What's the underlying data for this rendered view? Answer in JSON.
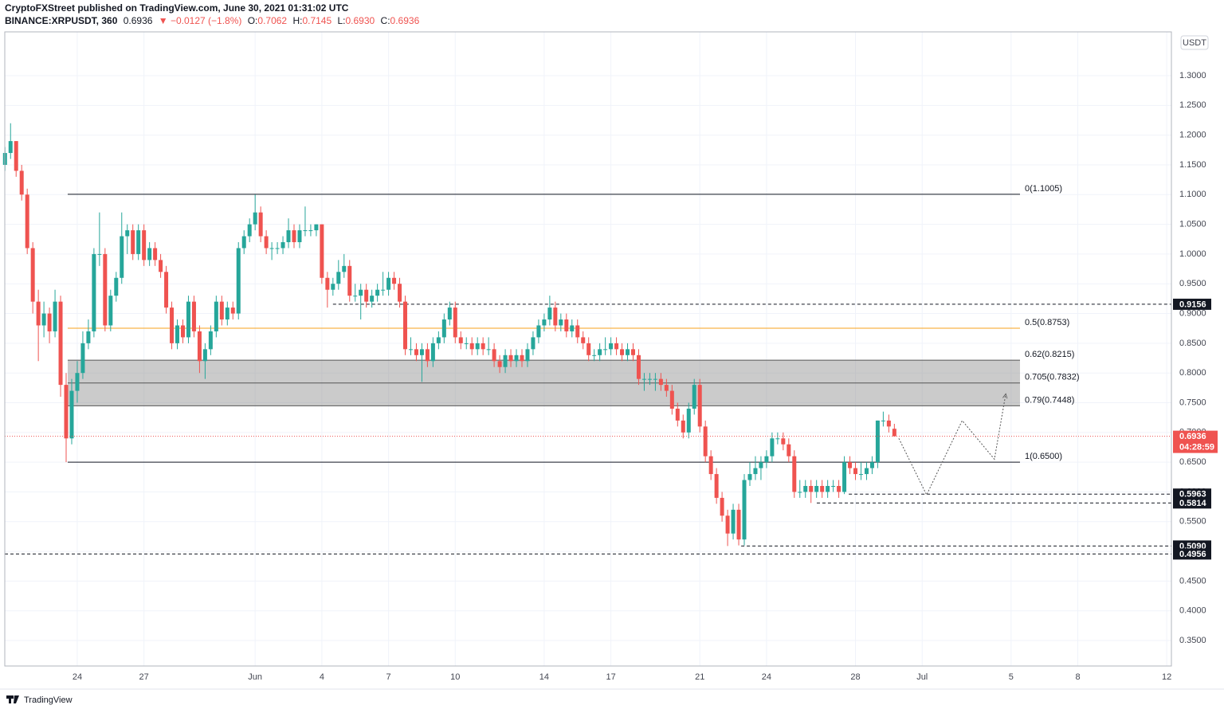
{
  "header": {
    "published": "CryptoFXStreet published on TradingView.com, June 30, 2021 01:31:02 UTC",
    "symbol": "BINANCE:XRPUSDT, 360",
    "price": "0.6936",
    "change": "▼ −0.0127 (−1.8%)",
    "ohlc": [
      {
        "k": "O:",
        "v": "0.7062"
      },
      {
        "k": "H:",
        "v": "0.7145"
      },
      {
        "k": "L:",
        "v": "0.6930"
      },
      {
        "k": "C:",
        "v": "0.6936"
      }
    ]
  },
  "footer": "TradingView",
  "chart_data": {
    "type": "candlestick",
    "axis_unit": "USDT",
    "colors": {
      "up": "#26a69a",
      "down": "#ef5350"
    },
    "xlim": [
      -3.26,
      49.21
    ],
    "ylim": [
      0.3072,
      1.3737
    ],
    "grid": true,
    "xticks": [
      {
        "value": 0,
        "label": "24"
      },
      {
        "value": 3,
        "label": "27"
      },
      {
        "value": 8,
        "label": "Jun"
      },
      {
        "value": 11,
        "label": "4"
      },
      {
        "value": 14,
        "label": "7"
      },
      {
        "value": 17,
        "label": "10"
      },
      {
        "value": 21,
        "label": "14"
      },
      {
        "value": 24,
        "label": "17"
      },
      {
        "value": 28,
        "label": "21"
      },
      {
        "value": 31,
        "label": "24"
      },
      {
        "value": 35,
        "label": "28"
      },
      {
        "value": 38,
        "label": "Jul"
      },
      {
        "value": 42,
        "label": "5"
      },
      {
        "value": 45,
        "label": "8"
      },
      {
        "value": 49,
        "label": "12"
      }
    ],
    "yticks": [
      {
        "value": 0.35,
        "label": "0.3500"
      },
      {
        "value": 0.4,
        "label": "0.4000"
      },
      {
        "value": 0.45,
        "label": "0.4500"
      },
      {
        "value": 0.5,
        "label": "0.5000"
      },
      {
        "value": 0.55,
        "label": "0.5500"
      },
      {
        "value": 0.6,
        "label": "0.6000"
      },
      {
        "value": 0.65,
        "label": "0.6500"
      },
      {
        "value": 0.7,
        "label": "0.7000"
      },
      {
        "value": 0.75,
        "label": "0.7500"
      },
      {
        "value": 0.8,
        "label": "0.8000"
      },
      {
        "value": 0.85,
        "label": "0.8500"
      },
      {
        "value": 0.9,
        "label": "0.9000"
      },
      {
        "value": 0.95,
        "label": "0.9500"
      },
      {
        "value": 1.0,
        "label": "1.0000"
      },
      {
        "value": 1.05,
        "label": "1.0500"
      },
      {
        "value": 1.1,
        "label": "1.1000"
      },
      {
        "value": 1.15,
        "label": "1.1500"
      },
      {
        "value": 1.2,
        "label": "1.2000"
      },
      {
        "value": 1.25,
        "label": "1.2500"
      },
      {
        "value": 1.3,
        "label": "1.3000"
      }
    ],
    "x": [
      -3.25,
      -3,
      -2.75,
      -2.5,
      -2.25,
      -2,
      -1.75,
      -1.5,
      -1.25,
      -1,
      -0.75,
      -0.5,
      -0.25,
      0,
      0.25,
      0.5,
      0.75,
      1,
      1.25,
      1.5,
      1.75,
      2,
      2.25,
      2.5,
      2.75,
      3,
      3.25,
      3.5,
      3.75,
      4,
      4.25,
      4.5,
      4.75,
      5,
      5.25,
      5.5,
      5.75,
      6,
      6.25,
      6.5,
      6.75,
      7,
      7.25,
      7.5,
      7.75,
      8,
      8.25,
      8.5,
      8.75,
      9,
      9.25,
      9.5,
      9.75,
      10,
      10.25,
      10.5,
      10.75,
      11,
      11.25,
      11.5,
      11.75,
      12,
      12.25,
      12.5,
      12.75,
      13,
      13.25,
      13.5,
      13.75,
      14,
      14.25,
      14.5,
      14.75,
      15,
      15.25,
      15.5,
      15.75,
      16,
      16.25,
      16.5,
      16.75,
      17,
      17.25,
      17.5,
      17.75,
      18,
      18.25,
      18.5,
      18.75,
      19,
      19.25,
      19.5,
      19.75,
      20,
      20.25,
      20.5,
      20.75,
      21,
      21.25,
      21.5,
      21.75,
      22,
      22.25,
      22.5,
      22.75,
      23,
      23.25,
      23.5,
      23.75,
      24,
      24.25,
      24.5,
      24.75,
      25,
      25.25,
      25.5,
      25.75,
      26,
      26.25,
      26.5,
      26.75,
      27,
      27.25,
      27.5,
      27.75,
      28,
      28.25,
      28.5,
      28.75,
      29,
      29.25,
      29.5,
      29.75,
      30,
      30.25,
      30.5,
      30.75,
      31,
      31.25,
      31.5,
      31.75,
      32,
      32.25,
      32.5,
      32.75,
      33,
      33.25,
      33.5,
      33.75,
      34,
      34.25,
      34.5,
      34.75,
      35,
      35.25,
      35.5,
      35.75,
      36,
      36.25,
      36.5,
      36.75
    ],
    "candles": [
      [
        1.15,
        1.18,
        1.14,
        1.17
      ],
      [
        1.17,
        1.22,
        1.16,
        1.19
      ],
      [
        1.19,
        1.19,
        1.13,
        1.14
      ],
      [
        1.14,
        1.15,
        1.09,
        1.1
      ],
      [
        1.1,
        1.11,
        1.0,
        1.01
      ],
      [
        1.01,
        1.02,
        0.9,
        0.92
      ],
      [
        0.92,
        0.94,
        0.82,
        0.88
      ],
      [
        0.88,
        0.92,
        0.86,
        0.9
      ],
      [
        0.9,
        0.91,
        0.85,
        0.87
      ],
      [
        0.87,
        0.94,
        0.86,
        0.92
      ],
      [
        0.92,
        0.93,
        0.76,
        0.78
      ],
      [
        0.78,
        0.8,
        0.65,
        0.69
      ],
      [
        0.69,
        0.79,
        0.68,
        0.77
      ],
      [
        0.77,
        0.82,
        0.75,
        0.8
      ],
      [
        0.8,
        0.87,
        0.79,
        0.85
      ],
      [
        0.85,
        0.89,
        0.84,
        0.87
      ],
      [
        0.87,
        1.01,
        0.86,
        1.0
      ],
      [
        1.0,
        1.07,
        0.98,
        1.0
      ],
      [
        1.0,
        1.01,
        0.87,
        0.88
      ],
      [
        0.88,
        0.94,
        0.87,
        0.93
      ],
      [
        0.93,
        0.97,
        0.92,
        0.96
      ],
      [
        0.96,
        1.07,
        0.95,
        1.03
      ],
      [
        1.03,
        1.05,
        1.0,
        1.04
      ],
      [
        1.04,
        1.05,
        0.99,
        1.0
      ],
      [
        1.0,
        1.05,
        0.99,
        1.04
      ],
      [
        1.04,
        1.05,
        0.98,
        0.99
      ],
      [
        0.99,
        1.02,
        0.98,
        1.01
      ],
      [
        1.01,
        1.02,
        0.98,
        0.99
      ],
      [
        0.99,
        1.0,
        0.96,
        0.97
      ],
      [
        0.97,
        0.98,
        0.9,
        0.91
      ],
      [
        0.91,
        0.92,
        0.84,
        0.85
      ],
      [
        0.85,
        0.89,
        0.84,
        0.88
      ],
      [
        0.88,
        0.89,
        0.85,
        0.86
      ],
      [
        0.86,
        0.93,
        0.85,
        0.92
      ],
      [
        0.92,
        0.93,
        0.86,
        0.87
      ],
      [
        0.87,
        0.88,
        0.8,
        0.82
      ],
      [
        0.82,
        0.85,
        0.79,
        0.84
      ],
      [
        0.84,
        0.88,
        0.83,
        0.87
      ],
      [
        0.87,
        0.93,
        0.86,
        0.92
      ],
      [
        0.92,
        0.93,
        0.88,
        0.89
      ],
      [
        0.89,
        0.92,
        0.88,
        0.91
      ],
      [
        0.91,
        0.92,
        0.89,
        0.9
      ],
      [
        0.9,
        1.02,
        0.89,
        1.01
      ],
      [
        1.01,
        1.04,
        1.0,
        1.03
      ],
      [
        1.03,
        1.06,
        1.02,
        1.05
      ],
      [
        1.05,
        1.1,
        1.04,
        1.07
      ],
      [
        1.07,
        1.08,
        1.02,
        1.03
      ],
      [
        1.03,
        1.04,
        1.0,
        1.01
      ],
      [
        1.01,
        1.02,
        0.99,
        1.01
      ],
      [
        1.01,
        1.02,
        1.0,
        1.01
      ],
      [
        1.01,
        1.03,
        1.0,
        1.02
      ],
      [
        1.02,
        1.06,
        1.01,
        1.04
      ],
      [
        1.04,
        1.05,
        1.01,
        1.02
      ],
      [
        1.02,
        1.05,
        1.01,
        1.04
      ],
      [
        1.04,
        1.08,
        1.03,
        1.04
      ],
      [
        1.04,
        1.05,
        1.03,
        1.04
      ],
      [
        1.04,
        1.05,
        1.03,
        1.05
      ],
      [
        1.05,
        1.05,
        0.95,
        0.96
      ],
      [
        0.96,
        0.97,
        0.91,
        0.94
      ],
      [
        0.94,
        0.96,
        0.93,
        0.95
      ],
      [
        0.95,
        0.99,
        0.94,
        0.97
      ],
      [
        0.97,
        1.0,
        0.96,
        0.98
      ],
      [
        0.98,
        0.99,
        0.92,
        0.93
      ],
      [
        0.93,
        0.95,
        0.92,
        0.93
      ],
      [
        0.93,
        0.95,
        0.89,
        0.94
      ],
      [
        0.94,
        0.95,
        0.91,
        0.92
      ],
      [
        0.92,
        0.94,
        0.91,
        0.93
      ],
      [
        0.93,
        0.95,
        0.92,
        0.94
      ],
      [
        0.94,
        0.97,
        0.93,
        0.94
      ],
      [
        0.94,
        0.97,
        0.93,
        0.96
      ],
      [
        0.96,
        0.97,
        0.94,
        0.95
      ],
      [
        0.95,
        0.96,
        0.91,
        0.92
      ],
      [
        0.92,
        0.93,
        0.83,
        0.84
      ],
      [
        0.84,
        0.86,
        0.83,
        0.84
      ],
      [
        0.84,
        0.85,
        0.82,
        0.83
      ],
      [
        0.83,
        0.85,
        0.785,
        0.84
      ],
      [
        0.84,
        0.85,
        0.81,
        0.82
      ],
      [
        0.82,
        0.86,
        0.81,
        0.85
      ],
      [
        0.85,
        0.87,
        0.84,
        0.86
      ],
      [
        0.86,
        0.9,
        0.85,
        0.89
      ],
      [
        0.89,
        0.92,
        0.88,
        0.91
      ],
      [
        0.91,
        0.92,
        0.85,
        0.86
      ],
      [
        0.86,
        0.87,
        0.84,
        0.85
      ],
      [
        0.85,
        0.86,
        0.84,
        0.85
      ],
      [
        0.85,
        0.86,
        0.83,
        0.84
      ],
      [
        0.84,
        0.86,
        0.83,
        0.85
      ],
      [
        0.85,
        0.86,
        0.83,
        0.84
      ],
      [
        0.84,
        0.86,
        0.83,
        0.84
      ],
      [
        0.84,
        0.85,
        0.81,
        0.82
      ],
      [
        0.82,
        0.83,
        0.8,
        0.81
      ],
      [
        0.81,
        0.84,
        0.8,
        0.83
      ],
      [
        0.83,
        0.84,
        0.81,
        0.82
      ],
      [
        0.82,
        0.84,
        0.81,
        0.83
      ],
      [
        0.83,
        0.84,
        0.81,
        0.82
      ],
      [
        0.82,
        0.85,
        0.81,
        0.84
      ],
      [
        0.84,
        0.87,
        0.83,
        0.86
      ],
      [
        0.86,
        0.89,
        0.85,
        0.88
      ],
      [
        0.88,
        0.9,
        0.87,
        0.89
      ],
      [
        0.89,
        0.93,
        0.88,
        0.91
      ],
      [
        0.91,
        0.92,
        0.87,
        0.88
      ],
      [
        0.88,
        0.9,
        0.87,
        0.89
      ],
      [
        0.89,
        0.9,
        0.86,
        0.87
      ],
      [
        0.87,
        0.89,
        0.86,
        0.88
      ],
      [
        0.88,
        0.89,
        0.85,
        0.86
      ],
      [
        0.86,
        0.87,
        0.84,
        0.85
      ],
      [
        0.85,
        0.86,
        0.82,
        0.83
      ],
      [
        0.83,
        0.84,
        0.82,
        0.83
      ],
      [
        0.83,
        0.85,
        0.82,
        0.84
      ],
      [
        0.84,
        0.86,
        0.83,
        0.84
      ],
      [
        0.84,
        0.86,
        0.83,
        0.85
      ],
      [
        0.85,
        0.86,
        0.83,
        0.84
      ],
      [
        0.84,
        0.85,
        0.82,
        0.83
      ],
      [
        0.83,
        0.85,
        0.82,
        0.84
      ],
      [
        0.84,
        0.85,
        0.82,
        0.83
      ],
      [
        0.83,
        0.84,
        0.78,
        0.79
      ],
      [
        0.79,
        0.8,
        0.77,
        0.79
      ],
      [
        0.79,
        0.8,
        0.78,
        0.79
      ],
      [
        0.79,
        0.8,
        0.77,
        0.79
      ],
      [
        0.79,
        0.8,
        0.77,
        0.78
      ],
      [
        0.78,
        0.79,
        0.76,
        0.77
      ],
      [
        0.77,
        0.78,
        0.73,
        0.74
      ],
      [
        0.74,
        0.75,
        0.71,
        0.72
      ],
      [
        0.72,
        0.73,
        0.69,
        0.7
      ],
      [
        0.7,
        0.75,
        0.69,
        0.74
      ],
      [
        0.74,
        0.79,
        0.73,
        0.78
      ],
      [
        0.78,
        0.79,
        0.7,
        0.71
      ],
      [
        0.71,
        0.72,
        0.65,
        0.66
      ],
      [
        0.66,
        0.67,
        0.62,
        0.63
      ],
      [
        0.63,
        0.64,
        0.58,
        0.59
      ],
      [
        0.59,
        0.6,
        0.55,
        0.56
      ],
      [
        0.56,
        0.57,
        0.509,
        0.53
      ],
      [
        0.53,
        0.58,
        0.52,
        0.57
      ],
      [
        0.57,
        0.58,
        0.51,
        0.52
      ],
      [
        0.52,
        0.63,
        0.51,
        0.62
      ],
      [
        0.62,
        0.65,
        0.61,
        0.63
      ],
      [
        0.63,
        0.66,
        0.62,
        0.64
      ],
      [
        0.64,
        0.66,
        0.62,
        0.65
      ],
      [
        0.65,
        0.67,
        0.64,
        0.66
      ],
      [
        0.66,
        0.7,
        0.65,
        0.69
      ],
      [
        0.69,
        0.7,
        0.68,
        0.69
      ],
      [
        0.69,
        0.7,
        0.67,
        0.68
      ],
      [
        0.68,
        0.69,
        0.65,
        0.66
      ],
      [
        0.66,
        0.67,
        0.59,
        0.6
      ],
      [
        0.6,
        0.62,
        0.59,
        0.6
      ],
      [
        0.6,
        0.62,
        0.59,
        0.61
      ],
      [
        0.61,
        0.62,
        0.5814,
        0.6
      ],
      [
        0.6,
        0.62,
        0.59,
        0.61
      ],
      [
        0.61,
        0.62,
        0.59,
        0.6
      ],
      [
        0.6,
        0.62,
        0.59,
        0.61
      ],
      [
        0.61,
        0.62,
        0.6,
        0.61
      ],
      [
        0.61,
        0.62,
        0.59,
        0.6
      ],
      [
        0.6,
        0.66,
        0.5963,
        0.65
      ],
      [
        0.65,
        0.66,
        0.63,
        0.64
      ],
      [
        0.64,
        0.65,
        0.62,
        0.63
      ],
      [
        0.63,
        0.65,
        0.62,
        0.63
      ],
      [
        0.63,
        0.65,
        0.62,
        0.64
      ],
      [
        0.64,
        0.66,
        0.63,
        0.65
      ],
      [
        0.65,
        0.72,
        0.64,
        0.72
      ],
      [
        0.72,
        0.735,
        0.71,
        0.72
      ],
      [
        0.72,
        0.73,
        0.7,
        0.71
      ],
      [
        0.7062,
        0.7145,
        0.693,
        0.6936
      ]
    ],
    "fib_x": [
      -0.43,
      42.4
    ],
    "fibs": [
      {
        "value": 1.1005,
        "label": "0(1.1005)",
        "color": "#131722"
      },
      {
        "value": 0.8753,
        "label": "0.5(0.8753)",
        "color": "#f7a21b"
      },
      {
        "value": 0.8215,
        "label": "0.62(0.8215)",
        "color": "#555555"
      },
      {
        "value": 0.7832,
        "label": "0.705(0.7832)",
        "color": "#555555"
      },
      {
        "value": 0.7448,
        "label": "0.79(0.7448)",
        "color": "#555555"
      },
      {
        "value": 0.65,
        "label": "1(0.6500)",
        "color": "#131722"
      }
    ],
    "levels": [
      {
        "value": 0.9156,
        "label": "0.9156",
        "x0": 11.5
      },
      {
        "value": 0.5963,
        "label": "0.5963",
        "x0": 34.7
      },
      {
        "value": 0.5814,
        "label": "0.5814",
        "x0": 33.26
      },
      {
        "value": 0.509,
        "label": "0.5090",
        "x0": 29.86
      },
      {
        "value": 0.4956,
        "label": "0.4956",
        "x0": -3.26
      }
    ],
    "current": {
      "value": 0.6936,
      "label": "0.6936",
      "countdown": "04:28:59"
    },
    "projection": {
      "x": [
        36.95,
        38.2,
        39.8,
        41.25,
        41.76
      ],
      "y": [
        0.69,
        0.595,
        0.72,
        0.655,
        0.765
      ]
    }
  }
}
